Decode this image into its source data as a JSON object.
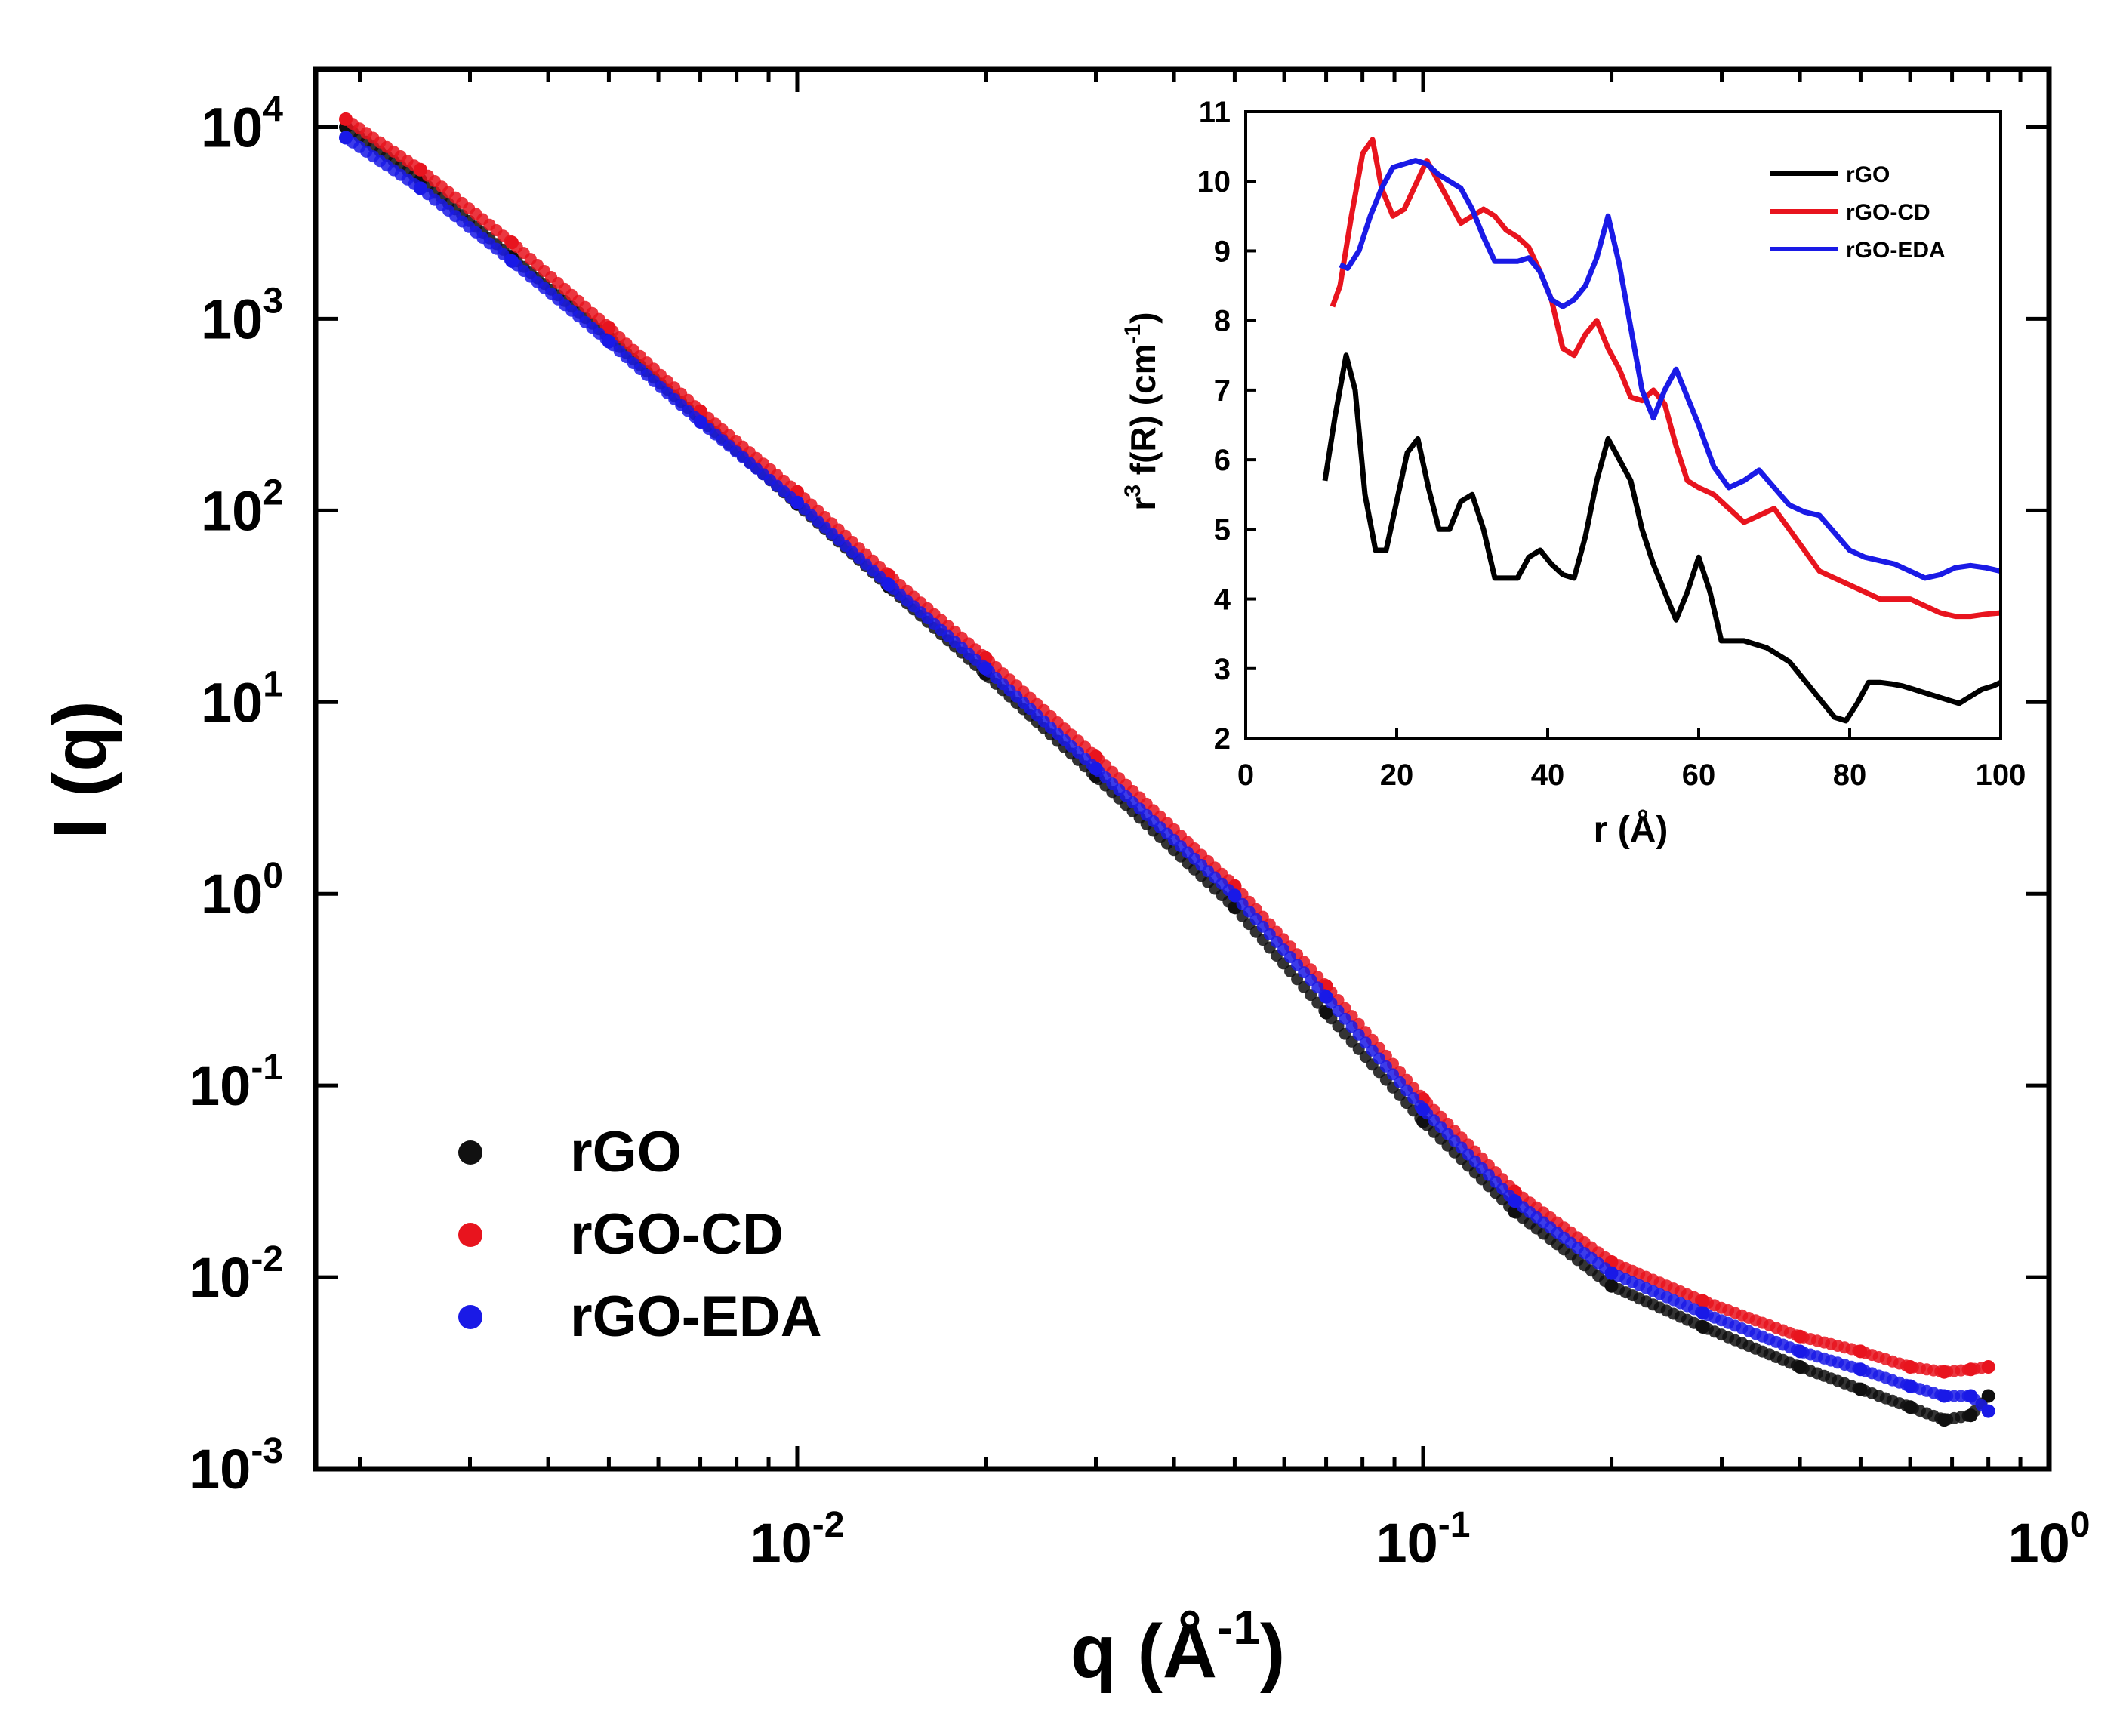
{
  "figure": {
    "main": {
      "type": "scatter",
      "xscale": "log",
      "yscale": "log",
      "xlim": [
        0.0017,
        1.0
      ],
      "ylim": [
        0.001,
        20000
      ],
      "xlabel": {
        "main": "q (Å",
        "sup": "-1",
        "close": ")"
      },
      "ylabel": "I (q)",
      "xticks": [
        {
          "value": 0.01,
          "base": "10",
          "exp": "-2"
        },
        {
          "value": 0.1,
          "base": "10",
          "exp": "-1"
        },
        {
          "value": 1,
          "base": "10",
          "exp": "0"
        }
      ],
      "yticks": [
        {
          "value": 10000,
          "base": "10",
          "exp": "4"
        },
        {
          "value": 1000,
          "base": "10",
          "exp": "3"
        },
        {
          "value": 100,
          "base": "10",
          "exp": "2"
        },
        {
          "value": 10,
          "base": "10",
          "exp": "1"
        },
        {
          "value": 1,
          "base": "10",
          "exp": "0"
        },
        {
          "value": 0.1,
          "base": "10",
          "exp": "-1"
        },
        {
          "value": 0.01,
          "base": "10",
          "exp": "-2"
        },
        {
          "value": 0.001,
          "base": "10",
          "exp": "-3"
        }
      ],
      "legend": {
        "position": "lower-left"
      },
      "series": [
        {
          "name": "rGO",
          "color": "#111111",
          "q": [
            0.0019,
            0.0025,
            0.0035,
            0.005,
            0.007,
            0.01,
            0.014,
            0.02,
            0.03,
            0.05,
            0.07,
            0.1,
            0.14,
            0.2,
            0.28,
            0.4,
            0.5,
            0.6,
            0.68,
            0.75,
            0.8
          ],
          "I": [
            10000,
            5300,
            2100,
            800,
            300,
            108,
            40,
            14,
            4.1,
            0.85,
            0.24,
            0.065,
            0.022,
            0.009,
            0.0055,
            0.0034,
            0.0026,
            0.0021,
            0.0018,
            0.0019,
            0.0024
          ]
        },
        {
          "name": "rGO-CD",
          "color": "#e8141e",
          "q": [
            0.0019,
            0.0025,
            0.0035,
            0.005,
            0.007,
            0.01,
            0.014,
            0.02,
            0.03,
            0.05,
            0.07,
            0.1,
            0.14,
            0.2,
            0.28,
            0.4,
            0.5,
            0.6,
            0.68,
            0.75,
            0.8
          ],
          "I": [
            11000,
            6000,
            2500,
            900,
            330,
            125,
            46,
            17,
            5.2,
            1.1,
            0.33,
            0.085,
            0.028,
            0.012,
            0.0075,
            0.0049,
            0.0041,
            0.0034,
            0.0032,
            0.0033,
            0.0034
          ]
        },
        {
          "name": "rGO-EDA",
          "color": "#1a1ae6",
          "q": [
            0.0019,
            0.0025,
            0.0035,
            0.005,
            0.007,
            0.01,
            0.014,
            0.02,
            0.03,
            0.05,
            0.07,
            0.1,
            0.14,
            0.2,
            0.28,
            0.4,
            0.5,
            0.6,
            0.68,
            0.75,
            0.8
          ],
          "I": [
            8800,
            4800,
            2000,
            760,
            290,
            110,
            41,
            15,
            4.5,
            0.98,
            0.29,
            0.075,
            0.025,
            0.0105,
            0.0065,
            0.0041,
            0.0033,
            0.0027,
            0.0024,
            0.0024,
            0.002
          ]
        }
      ]
    },
    "inset": {
      "type": "line",
      "xlim": [
        0,
        100
      ],
      "ylim": [
        2,
        11
      ],
      "xticks": [
        "0",
        "20",
        "40",
        "60",
        "80",
        "100"
      ],
      "yticks": [
        "2",
        "3",
        "4",
        "5",
        "6",
        "7",
        "8",
        "9",
        "10",
        "11"
      ],
      "xlabel": "r (Å)",
      "ylabel": {
        "p1": "r",
        "sup1": "3",
        "p2": " f(R) (cm",
        "sup2": "-1",
        "p3": ")"
      },
      "legend": {
        "position": "top-right"
      },
      "series": [
        {
          "name": "rGO",
          "color": "#000000",
          "x": [
            10.5,
            11.8,
            13.3,
            14.5,
            15.8,
            17.2,
            18.6,
            20.0,
            21.4,
            22.8,
            24.2,
            25.6,
            27.0,
            28.5,
            30.0,
            31.5,
            33.0,
            34.5,
            36.0,
            37.5,
            39.0,
            40.5,
            42.0,
            43.5,
            45.0,
            46.5,
            48.0,
            49.5,
            51.0,
            52.5,
            54.0,
            55.5,
            57.0,
            58.5,
            60.0,
            61.5,
            63.0,
            64.5,
            66.0,
            67.5,
            69.0,
            70.5,
            72.0,
            73.5,
            75.0,
            76.5,
            78.0,
            79.5,
            81.0,
            82.5,
            84.0,
            85.5,
            87.0,
            88.5,
            90.0,
            91.5,
            93.0,
            94.5,
            96.0,
            97.5,
            99.0,
            100
          ],
          "y": [
            5.7,
            6.6,
            7.5,
            7.0,
            5.5,
            4.7,
            4.7,
            5.4,
            6.1,
            6.3,
            5.6,
            5.0,
            5.0,
            5.4,
            5.5,
            5.0,
            4.3,
            4.3,
            4.3,
            4.6,
            4.7,
            4.5,
            4.35,
            4.3,
            4.9,
            5.7,
            6.3,
            6.0,
            5.7,
            5.0,
            4.5,
            4.1,
            3.7,
            4.1,
            4.6,
            4.1,
            3.4,
            3.4,
            3.4,
            3.35,
            3.3,
            3.2,
            3.1,
            2.9,
            2.7,
            2.5,
            2.3,
            2.25,
            2.5,
            2.8,
            2.8,
            2.78,
            2.75,
            2.7,
            2.65,
            2.6,
            2.55,
            2.5,
            2.6,
            2.7,
            2.75,
            2.8
          ]
        },
        {
          "name": "rGO-CD",
          "color": "#e8141e",
          "x": [
            11.5,
            12.5,
            14.0,
            15.5,
            16.8,
            18.0,
            19.5,
            21.0,
            22.5,
            24.0,
            25.5,
            27.0,
            28.5,
            30.0,
            31.5,
            33.0,
            34.5,
            36.0,
            37.5,
            39.0,
            40.5,
            42.0,
            43.5,
            45.0,
            46.5,
            48.0,
            49.5,
            51.0,
            52.5,
            54.0,
            55.5,
            57.0,
            58.5,
            60.0,
            62.0,
            64.0,
            66.0,
            68.0,
            70.0,
            72.0,
            74.0,
            76.0,
            78.0,
            80.0,
            82.0,
            84.0,
            86.0,
            88.0,
            90.0,
            92.0,
            94.0,
            96.0,
            98.0,
            100
          ],
          "y": [
            8.2,
            8.5,
            9.5,
            10.4,
            10.6,
            9.9,
            9.5,
            9.6,
            9.95,
            10.3,
            10.0,
            9.7,
            9.4,
            9.5,
            9.6,
            9.5,
            9.3,
            9.2,
            9.05,
            8.7,
            8.3,
            7.6,
            7.5,
            7.8,
            8.0,
            7.6,
            7.3,
            6.9,
            6.85,
            7.0,
            6.8,
            6.2,
            5.7,
            5.6,
            5.5,
            5.3,
            5.1,
            5.2,
            5.3,
            5.0,
            4.7,
            4.4,
            4.3,
            4.2,
            4.1,
            4.0,
            4.0,
            4.0,
            3.9,
            3.8,
            3.75,
            3.75,
            3.78,
            3.8
          ]
        },
        {
          "name": "rGO-EDA",
          "color": "#1a1ae6",
          "x": [
            12.5,
            13.5,
            15.0,
            16.5,
            18.0,
            19.5,
            21.0,
            22.5,
            24.0,
            25.5,
            27.0,
            28.5,
            30.0,
            31.5,
            33.0,
            34.5,
            36.0,
            37.5,
            39.0,
            40.5,
            42.0,
            43.5,
            45.0,
            46.5,
            48.0,
            49.5,
            51.0,
            52.5,
            54.0,
            55.5,
            57.0,
            58.5,
            60.0,
            62.0,
            64.0,
            66.0,
            68.0,
            70.0,
            72.0,
            74.0,
            76.0,
            78.0,
            80.0,
            82.0,
            84.0,
            86.0,
            88.0,
            90.0,
            92.0,
            94.0,
            96.0,
            98.0,
            100
          ],
          "y": [
            8.8,
            8.75,
            9.0,
            9.5,
            9.9,
            10.2,
            10.25,
            10.3,
            10.25,
            10.1,
            10.0,
            9.9,
            9.6,
            9.2,
            8.85,
            8.85,
            8.85,
            8.9,
            8.7,
            8.3,
            8.2,
            8.3,
            8.5,
            8.9,
            9.5,
            8.8,
            7.9,
            7.0,
            6.6,
            7.0,
            7.3,
            6.9,
            6.5,
            5.9,
            5.6,
            5.7,
            5.85,
            5.6,
            5.35,
            5.25,
            5.2,
            4.95,
            4.7,
            4.6,
            4.55,
            4.5,
            4.4,
            4.3,
            4.35,
            4.45,
            4.48,
            4.45,
            4.4
          ]
        }
      ]
    }
  }
}
